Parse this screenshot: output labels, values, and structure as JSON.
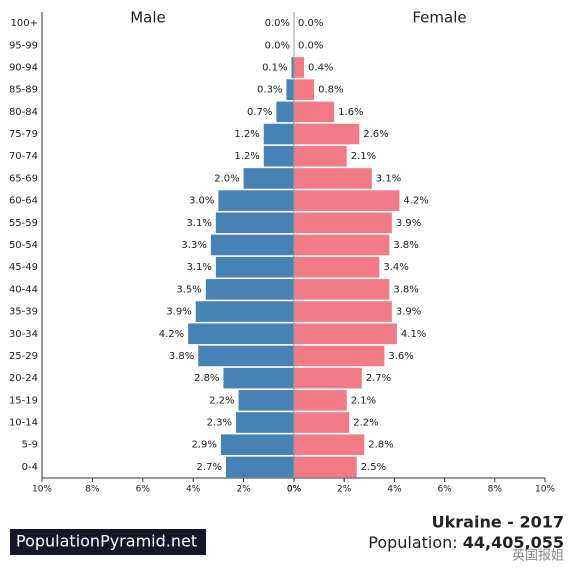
{
  "chart_data": {
    "type": "pyramid",
    "categories": [
      "100+",
      "95-99",
      "90-94",
      "85-89",
      "80-84",
      "75-79",
      "70-74",
      "65-69",
      "60-64",
      "55-59",
      "50-54",
      "45-49",
      "40-44",
      "35-39",
      "30-34",
      "25-29",
      "20-24",
      "15-19",
      "10-14",
      "5-9",
      "0-4"
    ],
    "series": [
      {
        "name": "Male",
        "color": "#4682b4",
        "values": [
          0.0,
          0.0,
          0.1,
          0.3,
          0.7,
          1.2,
          1.2,
          2.0,
          3.0,
          3.1,
          3.3,
          3.1,
          3.5,
          3.9,
          4.2,
          3.8,
          2.8,
          2.2,
          2.3,
          2.9,
          2.7
        ],
        "value_labels": [
          "0.0%",
          "0.0%",
          "0.1%",
          "0.3%",
          "0.7%",
          "1.2%",
          "1.2%",
          "2.0%",
          "3.0%",
          "3.1%",
          "3.3%",
          "3.1%",
          "3.5%",
          "3.9%",
          "4.2%",
          "3.8%",
          "2.8%",
          "2.2%",
          "2.3%",
          "2.9%",
          "2.7%"
        ],
        "xlim": [
          10,
          0
        ],
        "xticks": [
          {
            "value": 10,
            "label": "10%"
          },
          {
            "value": 8,
            "label": "8%"
          },
          {
            "value": 6,
            "label": "6%"
          },
          {
            "value": 4,
            "label": "4%"
          },
          {
            "value": 2,
            "label": "2%"
          },
          {
            "value": 0,
            "label": "0%"
          }
        ]
      },
      {
        "name": "Female",
        "color": "#f07b87",
        "values": [
          0.0,
          0.0,
          0.4,
          0.8,
          1.6,
          2.6,
          2.1,
          3.1,
          4.2,
          3.9,
          3.8,
          3.4,
          3.8,
          3.9,
          4.1,
          3.6,
          2.7,
          2.1,
          2.2,
          2.8,
          2.5
        ],
        "value_labels": [
          "0.0%",
          "0.0%",
          "0.4%",
          "0.8%",
          "1.6%",
          "2.6%",
          "2.1%",
          "3.1%",
          "4.2%",
          "3.9%",
          "3.8%",
          "3.4%",
          "3.8%",
          "3.9%",
          "4.1%",
          "3.6%",
          "2.7%",
          "2.1%",
          "2.2%",
          "2.8%",
          "2.5%"
        ],
        "xlim": [
          0,
          10
        ],
        "xticks": [
          {
            "value": 0,
            "label": "0%"
          },
          {
            "value": 2,
            "label": "2%"
          },
          {
            "value": 4,
            "label": "4%"
          },
          {
            "value": 6,
            "label": "6%"
          },
          {
            "value": 8,
            "label": "8%"
          },
          {
            "value": 10,
            "label": "10%"
          }
        ]
      }
    ]
  },
  "footer": {
    "brand": "PopulationPyramid.net",
    "title": "Ukraine - 2017",
    "population_label": "Population:",
    "population": "44,405,055",
    "watermark": "英国报姐"
  }
}
